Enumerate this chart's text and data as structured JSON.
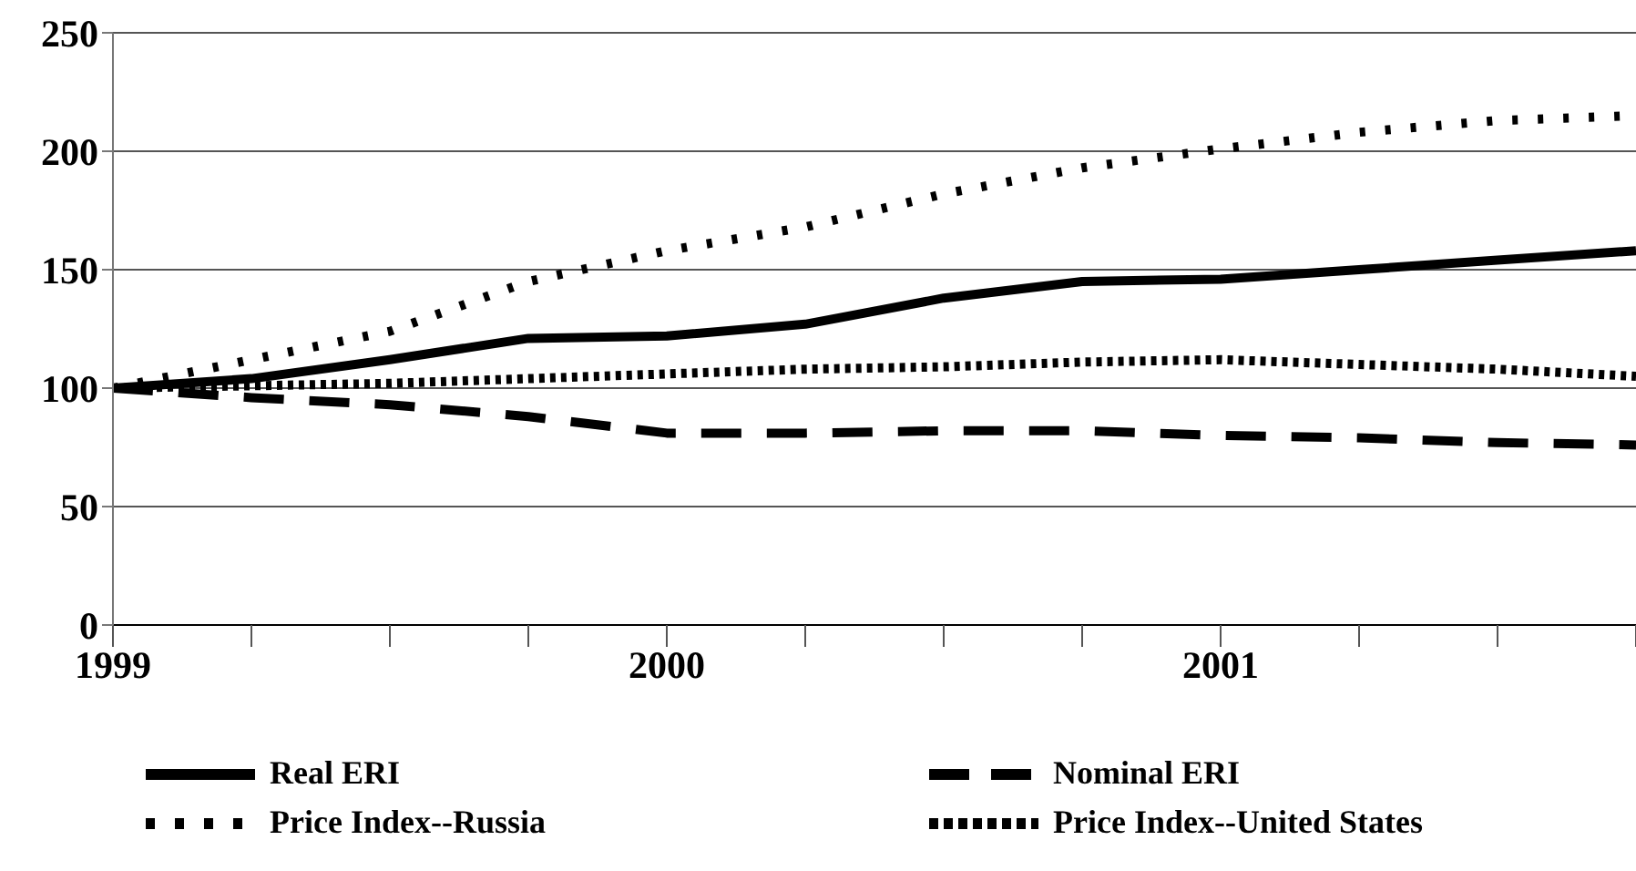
{
  "chart_data": {
    "type": "line",
    "x": [
      1999,
      1999.25,
      1999.5,
      1999.75,
      2000,
      2000.25,
      2000.5,
      2000.75,
      2001,
      2001.25,
      2001.5,
      2001.75
    ],
    "xlim": [
      1999,
      2001.75
    ],
    "xticks": [
      1999,
      {
        "value": 1999.25,
        "label": null
      },
      {
        "value": 1999.5,
        "label": null
      },
      {
        "value": 1999.75,
        "label": null
      },
      2000,
      {
        "value": 2000.25,
        "label": null
      },
      {
        "value": 2000.5,
        "label": null
      },
      {
        "value": 2000.75,
        "label": null
      },
      2001,
      {
        "value": 2001.25,
        "label": null
      },
      {
        "value": 2001.5,
        "label": null
      },
      {
        "value": 2001.75,
        "label": null
      }
    ],
    "ylim": [
      0,
      250
    ],
    "yticks": [
      0,
      50,
      100,
      150,
      200,
      250
    ],
    "grid": "y",
    "legend": "bottom",
    "marker": "none",
    "series": [
      {
        "name": "Real ERI",
        "color": "#000000",
        "line_style": "solid",
        "values": [
          100,
          104,
          112,
          121,
          122,
          127,
          138,
          145,
          146,
          150,
          154,
          158
        ]
      },
      {
        "name": "Nominal ERI",
        "color": "#000000",
        "line_style": "dashed",
        "values": [
          100,
          96,
          93,
          88,
          81,
          81,
          82,
          82,
          80,
          79,
          77,
          76
        ]
      },
      {
        "name": "Price Index--Russia",
        "color": "#000000",
        "line_style": "dotted",
        "values": [
          100,
          112,
          124,
          145,
          158,
          168,
          182,
          193,
          201,
          208,
          213,
          215
        ]
      },
      {
        "name": "Price Index--United States",
        "color": "#000000",
        "line_style": "dotted",
        "values": [
          100,
          101,
          102,
          104,
          106,
          108,
          109,
          111,
          112,
          110,
          108,
          105
        ]
      }
    ]
  }
}
